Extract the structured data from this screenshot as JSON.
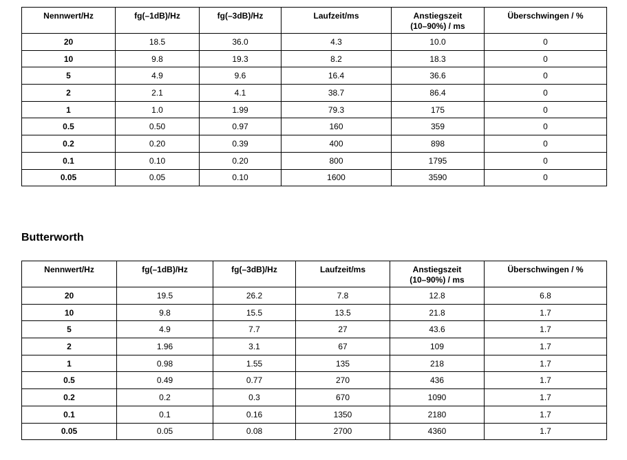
{
  "table1": {
    "header": [
      "Nennwert/Hz",
      "fg(–1dB)/Hz",
      "fg(–3dB)/Hz",
      "Laufzeit/ms",
      "Anstiegszeit\n(10–90%) / ms",
      "Überschwingen / %"
    ],
    "rows": [
      [
        "20",
        "18.5",
        "36.0",
        "4.3",
        "10.0",
        "0"
      ],
      [
        "10",
        "9.8",
        "19.3",
        "8.2",
        "18.3",
        "0"
      ],
      [
        "5",
        "4.9",
        "9.6",
        "16.4",
        "36.6",
        "0"
      ],
      [
        "2",
        "2.1",
        "4.1",
        "38.7",
        "86.4",
        "0"
      ],
      [
        "1",
        "1.0",
        "1.99",
        "79.3",
        "175",
        "0"
      ],
      [
        "0.5",
        "0.50",
        "0.97",
        "160",
        "359",
        "0"
      ],
      [
        "0.2",
        "0.20",
        "0.39",
        "400",
        "898",
        "0"
      ],
      [
        "0.1",
        "0.10",
        "0.20",
        "800",
        "1795",
        "0"
      ],
      [
        "0.05",
        "0.05",
        "0.10",
        "1600",
        "3590",
        "0"
      ]
    ]
  },
  "section_title": "Butterworth",
  "table2": {
    "header": [
      "Nennwert/Hz",
      "fg(–1dB)/Hz",
      "fg(–3dB)/Hz",
      "Laufzeit/ms",
      "Anstiegszeit\n(10–90%) / ms",
      "Überschwingen / %"
    ],
    "rows": [
      [
        "20",
        "19.5",
        "26.2",
        "7.8",
        "12.8",
        "6.8"
      ],
      [
        "10",
        "9.8",
        "15.5",
        "13.5",
        "21.8",
        "1.7"
      ],
      [
        "5",
        "4.9",
        "7.7",
        "27",
        "43.6",
        "1.7"
      ],
      [
        "2",
        "1.96",
        "3.1",
        "67",
        "109",
        "1.7"
      ],
      [
        "1",
        "0.98",
        "1.55",
        "135",
        "218",
        "1.7"
      ],
      [
        "0.5",
        "0.49",
        "0.77",
        "270",
        "436",
        "1.7"
      ],
      [
        "0.2",
        "0.2",
        "0.3",
        "670",
        "1090",
        "1.7"
      ],
      [
        "0.1",
        "0.1",
        "0.16",
        "1350",
        "2180",
        "1.7"
      ],
      [
        "0.05",
        "0.05",
        "0.08",
        "2700",
        "4360",
        "1.7"
      ]
    ]
  }
}
